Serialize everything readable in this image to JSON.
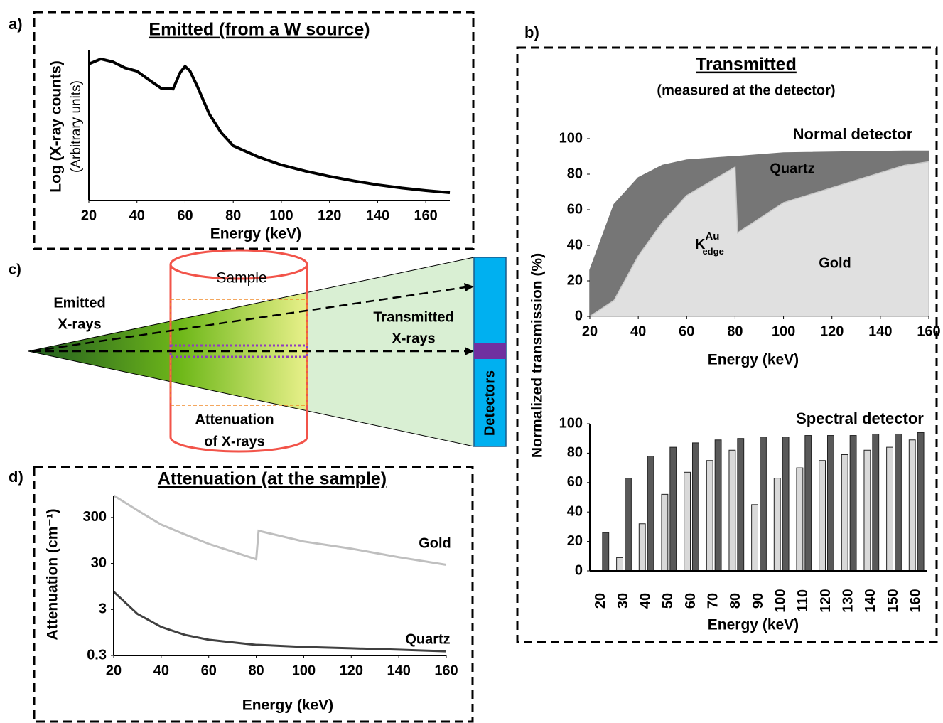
{
  "chart_data": [
    {
      "type": "line",
      "panel": "a)",
      "title": "Emitted (from a W source)",
      "ylabel": "Log (X-ray counts)",
      "ylabel_sub": "(Arbitrary units)",
      "xlabel": "Energy (keV)",
      "x": [
        20,
        25,
        30,
        35,
        40,
        45,
        50,
        55,
        58,
        60,
        62,
        65,
        70,
        75,
        80,
        90,
        100,
        110,
        120,
        130,
        140,
        150,
        160,
        170
      ],
      "series": [
        {
          "color": "#000000",
          "values": [
            90.6,
            93.9,
            92,
            88,
            85.8,
            80,
            74.5,
            74,
            85,
            89,
            86,
            76,
            57.5,
            45,
            36.3,
            29.2,
            23.6,
            19.5,
            16,
            13,
            10.4,
            8.3,
            6.6,
            5.2
          ]
        }
      ],
      "xlim": [
        20,
        170
      ],
      "xticks": [
        20,
        40,
        60,
        80,
        100,
        120,
        140,
        160
      ],
      "ylim": [
        0,
        100
      ]
    },
    {
      "type": "area",
      "panel": "b)",
      "title": "Transmitted",
      "subtitle": "(measured at the detector)",
      "annotation": "Normal detector",
      "annotation_color": "#00b0f0",
      "ylabel": "Normalized transmission (%)",
      "xlabel": "Energy (keV)",
      "edge_label": {
        "base": "K",
        "sup": "Au",
        "sub": "edge"
      },
      "x": [
        20,
        30,
        40,
        50,
        60,
        80,
        81,
        100,
        150,
        160
      ],
      "series": [
        {
          "name": "Quartz",
          "color": "#767676",
          "values": [
            26,
            63,
            78,
            85,
            88,
            90,
            90,
            92,
            93,
            93
          ]
        },
        {
          "name": "Gold",
          "color": "#e0e0e0",
          "values": [
            0,
            9,
            34,
            53,
            68,
            84,
            47,
            64,
            85,
            87
          ]
        }
      ],
      "xlim": [
        20,
        160
      ],
      "xticks": [
        20,
        40,
        60,
        80,
        100,
        120,
        140,
        160
      ],
      "ylim": [
        0,
        100
      ],
      "yticks": [
        0,
        20,
        40,
        60,
        80,
        100
      ]
    },
    {
      "type": "bar",
      "annotation": "Spectral detector",
      "annotation_color": "#7030a0",
      "xlabel": "Energy (keV)",
      "categories": [
        "20",
        "30",
        "40",
        "50",
        "60",
        "70",
        "80",
        "90",
        "100",
        "110",
        "120",
        "130",
        "140",
        "150",
        "160"
      ],
      "series": [
        {
          "color": "#d9d9d9",
          "values": [
            0,
            9,
            32,
            52,
            67,
            75,
            82,
            45,
            63,
            70,
            75,
            79,
            82,
            84,
            89
          ]
        },
        {
          "color": "#595959",
          "values": [
            26,
            63,
            78,
            84,
            87,
            89,
            90,
            91,
            91,
            92,
            92,
            92,
            93,
            93,
            94
          ]
        }
      ],
      "ylim": [
        0,
        100
      ],
      "yticks": [
        0,
        20,
        40,
        60,
        80,
        100
      ]
    },
    {
      "type": "line",
      "panel": "d)",
      "title": "Attenuation (at the sample)",
      "ylabel": "Attenuation (cm⁻¹)",
      "xlabel": "Energy (keV)",
      "log_y": true,
      "x": [
        20,
        30,
        40,
        50,
        60,
        80,
        81,
        100,
        120,
        140,
        160
      ],
      "series": [
        {
          "name": "Gold",
          "color": "#bfbfbf",
          "values": [
            900,
            428,
            210,
            128,
            80,
            37,
            154,
            90,
            63,
            41,
            28
          ]
        },
        {
          "name": "Quartz",
          "color": "#404040",
          "values": [
            7.3,
            2.4,
            1.25,
            0.84,
            0.66,
            0.51,
            0.51,
            0.46,
            0.43,
            0.4,
            0.37
          ]
        }
      ],
      "xlim": [
        20,
        160
      ],
      "xticks": [
        20,
        40,
        60,
        80,
        100,
        120,
        140,
        160
      ],
      "ylim": [
        0.3,
        900
      ],
      "yticks": [
        0.3,
        3,
        30,
        300
      ]
    }
  ],
  "diagram": {
    "panel": "c)",
    "sample": "Sample",
    "emitted": [
      "Emitted",
      "X-rays"
    ],
    "transmitted": [
      "Transmitted",
      "X-rays"
    ],
    "attenuation": [
      "Attenuation",
      "of X-rays"
    ],
    "detectors": "Detectors"
  }
}
